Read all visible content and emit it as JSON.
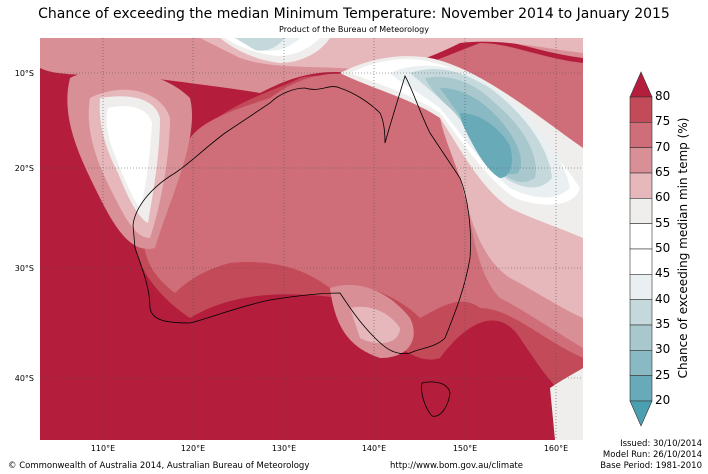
{
  "header": {
    "title": "Chance of exceeding the median Minimum Temperature: November 2014 to January 2015",
    "subtitle": "Product of the Bureau of Meteorology"
  },
  "map": {
    "lat_labels": [
      "10°S",
      "20°S",
      "30°S",
      "40°S"
    ],
    "lon_labels": [
      "110°E",
      "120°E",
      "130°E",
      "140°E",
      "150°E",
      "160°E"
    ]
  },
  "colorbar": {
    "label": "Chance of exceeding median min temp (%)",
    "ticks": [
      "80",
      "75",
      "70",
      "65",
      "60",
      "55",
      "50",
      "45",
      "40",
      "35",
      "30",
      "25",
      "20"
    ],
    "colors": {
      "gt80": "#b41e3c",
      "75": "#c34a58",
      "70": "#cf6e78",
      "65": "#d98f96",
      "60": "#e6b7bb",
      "55": "#efeeec",
      "50": "#ffffff",
      "45": "#ffffff",
      "40": "#eaf0f2",
      "35": "#c5d9dd",
      "30": "#a8c8cd",
      "25": "#89b9c3",
      "20": "#68aab8",
      "lt20": "#4aa0b0"
    }
  },
  "footer": {
    "copyright": "© Commonwealth of Australia 2014, Australian Bureau of Meteorology",
    "url": "http://www.bom.gov.au/climate",
    "issued": "Issued: 30/10/2014",
    "model_run": "Model Run: 26/10/2014",
    "base_period": "Base Period: 1981-2010"
  }
}
